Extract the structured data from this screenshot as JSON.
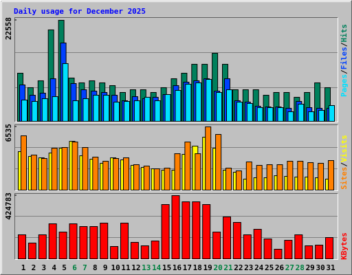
{
  "chart_data": [
    {
      "type": "bar",
      "title": "Daily usage for December 2025",
      "legend_separator": "/",
      "ylim": [
        0,
        22558
      ],
      "yticks": [
        22558
      ],
      "series": [
        {
          "name": "Hits",
          "color": "#00805c",
          "values": [
            10745,
            7522,
            9057,
            20416,
            22558,
            9671,
            8596,
            9057,
            8596,
            7982,
            6447,
            7061,
            7061,
            6447,
            7522,
            9517,
            10745,
            12741,
            12741,
            15197,
            12741,
            7061,
            7061,
            7061,
            5833,
            6447,
            6447,
            5373,
            6447,
            8596,
            7522
          ]
        },
        {
          "name": "Files",
          "color": "#0040ff",
          "values": [
            8136,
            5833,
            6294,
            9517,
            17499,
            8443,
            7061,
            6754,
            6447,
            5833,
            4605,
            5526,
            5066,
            5373,
            5987,
            7982,
            8750,
            9057,
            9517,
            6754,
            9517,
            4605,
            4298,
            3377,
            3224,
            3224,
            2917,
            4452,
            3070,
            2917,
            2917
          ]
        },
        {
          "name": "Pages",
          "color": "#00e0ff",
          "values": [
            4759,
            4452,
            5066,
            5526,
            12894,
            4605,
            5066,
            5833,
            5833,
            4298,
            4452,
            4605,
            5373,
            4605,
            5987,
            6908,
            8289,
            8596,
            9364,
            6447,
            7061,
            4298,
            3991,
            3070,
            3070,
            3070,
            2149,
            3838,
            2149,
            2456,
            3531
          ]
        }
      ]
    },
    {
      "type": "bar",
      "legend_separator": "/",
      "ylim": [
        0,
        6535
      ],
      "yticks": [
        6535
      ],
      "series": [
        {
          "name": "Visits",
          "color": "#ffff00",
          "values": [
            3976,
            3479,
            3337,
            3834,
            4331,
            5041,
            3550,
            3195,
            2769,
            3337,
            3124,
            2556,
            2343,
            2201,
            2059,
            2059,
            3692,
            4544,
            5467,
            4331,
            2059,
            1846,
            1136,
            1278,
            1278,
            1491,
            1420,
            1349,
            1349,
            1278,
            1136
          ]
        },
        {
          "name": "Sites",
          "color": "#ff8000",
          "values": [
            5609,
            3621,
            3266,
            4331,
            4402,
            4970,
            4402,
            3408,
            2982,
            3266,
            3337,
            2627,
            2485,
            2201,
            2272,
            3763,
            4970,
            3763,
            6535,
            5751,
            2272,
            1988,
            2911,
            2556,
            2627,
            2627,
            2982,
            2982,
            2840,
            2769,
            3053
          ]
        }
      ]
    },
    {
      "type": "bar",
      "ylim": [
        0,
        424783
      ],
      "yticks": [
        424783
      ],
      "categories": [
        "1",
        "2",
        "3",
        "4",
        "5",
        "6",
        "7",
        "8",
        "9",
        "10",
        "11",
        "12",
        "13",
        "14",
        "15",
        "16",
        "17",
        "18",
        "19",
        "20",
        "21",
        "22",
        "23",
        "24",
        "25",
        "26",
        "27",
        "28",
        "29",
        "30",
        "31"
      ],
      "category_colors": [
        "#000000",
        "#000000",
        "#000000",
        "#000000",
        "#000000",
        "#008040",
        "#008040",
        "#000000",
        "#000000",
        "#000000",
        "#000000",
        "#000000",
        "#008040",
        "#008040",
        "#000000",
        "#000000",
        "#000000",
        "#000000",
        "#000000",
        "#008040",
        "#008040",
        "#000000",
        "#000000",
        "#000000",
        "#000000",
        "#000000",
        "#008040",
        "#008040",
        "#000000",
        "#000000",
        "#000000"
      ],
      "series": [
        {
          "name": "KBytes",
          "color": "#ff0000",
          "values": [
            161595,
            106191,
            161595,
            235467,
            180063,
            235467,
            216999,
            216999,
            240084,
            83106,
            240084,
            110808,
            87723,
            120042,
            364743,
            424783,
            383211,
            383211,
            364743,
            180063,
            281637,
            244701,
            161595,
            198531,
            133893,
            64638,
            124659,
            161595,
            87723,
            92340,
            143127
          ]
        }
      ]
    }
  ]
}
